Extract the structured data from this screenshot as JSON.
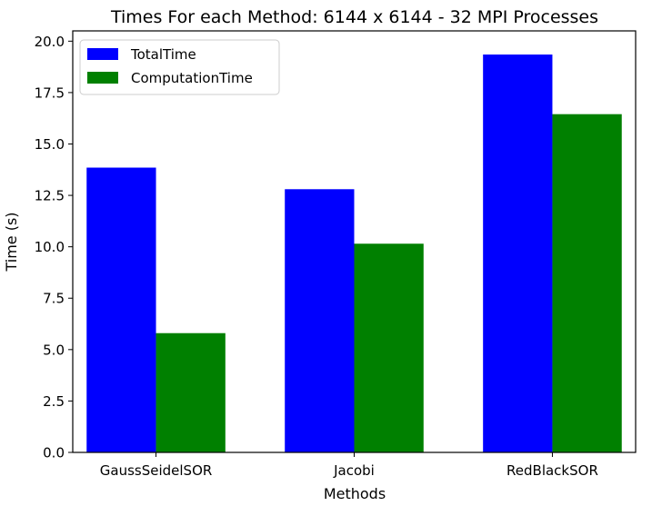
{
  "chart_data": {
    "type": "bar",
    "title": "Times For each Method: 6144 x 6144 - 32 MPI Processes",
    "xlabel": "Methods",
    "ylabel": "Time (s)",
    "categories": [
      "GaussSeidelSOR",
      "Jacobi",
      "RedBlackSOR"
    ],
    "series": [
      {
        "name": "TotalTime",
        "color": "#0000ff",
        "values": [
          13.85,
          12.8,
          19.35
        ]
      },
      {
        "name": "ComputationTime",
        "color": "#008000",
        "values": [
          5.8,
          10.15,
          16.45
        ]
      }
    ],
    "ylim": [
      0,
      20.5
    ],
    "yticks": [
      "0.0",
      "2.5",
      "5.0",
      "7.5",
      "10.0",
      "12.5",
      "15.0",
      "17.5",
      "20.0"
    ],
    "grid": false,
    "legend_position": "top-left"
  }
}
